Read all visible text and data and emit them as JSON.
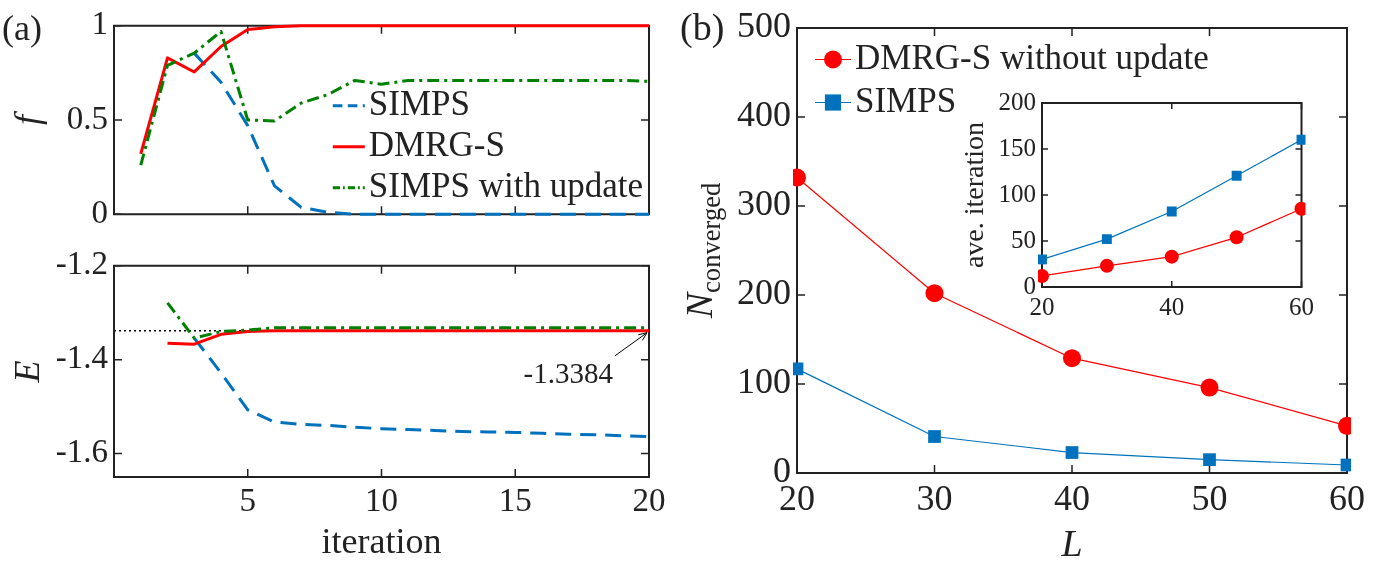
{
  "chart_data": [
    {
      "type": "line",
      "ylabel": "f",
      "x": [
        1,
        2,
        3,
        4,
        5,
        6,
        7,
        8,
        9,
        10,
        11,
        12,
        13,
        14,
        15,
        16,
        17,
        18,
        19,
        20
      ],
      "xlim": [
        0,
        20
      ],
      "xticks": [
        5,
        10,
        15,
        20
      ],
      "ylim": [
        0,
        1
      ],
      "yticks": [
        0,
        0.5,
        1
      ],
      "tick_labels": "y",
      "legend": "bottom right",
      "annotations": [
        "(a)"
      ],
      "series": [
        {
          "name": "SIMPS",
          "color": "#0072bd",
          "line_style": "dashed",
          "marker": "none",
          "values": [
            null,
            null,
            0.855,
            0.7,
            0.47,
            0.15,
            0.036,
            0.01,
            0,
            0,
            0,
            0,
            0,
            0,
            0,
            0,
            0,
            0,
            0,
            0
          ]
        },
        {
          "name": "DMRG-S",
          "color": "#ff0000",
          "line_style": "solid",
          "marker": "none",
          "values": [
            0.32,
            0.83,
            0.755,
            0.89,
            0.98,
            0.995,
            1,
            1,
            1,
            1,
            1,
            1,
            1,
            1,
            1,
            1,
            1,
            1,
            1,
            1
          ]
        },
        {
          "name": "SIMPS with update",
          "color": "#008000",
          "line_style": "dashdot",
          "marker": "none",
          "values": [
            0.26,
            0.79,
            0.855,
            0.97,
            0.5,
            0.495,
            0.59,
            0.635,
            0.71,
            0.69,
            0.71,
            0.71,
            0.71,
            0.71,
            0.71,
            0.71,
            0.71,
            0.71,
            0.71,
            0.705
          ]
        }
      ]
    },
    {
      "type": "line",
      "xlabel": "iteration",
      "ylabel": "E",
      "x": [
        2,
        3,
        4,
        5,
        6,
        7,
        8,
        9,
        10,
        11,
        12,
        13,
        14,
        15,
        16,
        17,
        18,
        19,
        20
      ],
      "xlim": [
        0,
        20
      ],
      "xticks": [
        5,
        10,
        15,
        20
      ],
      "ylim": [
        -1.65,
        -1.2
      ],
      "yticks": [
        -1.6,
        -1.4,
        -1.2
      ],
      "ref_lines": [
        {
          "axis": "y",
          "value": -1.3384,
          "color": "#000000",
          "line_style": "dotted"
        }
      ],
      "annotations": [
        {
          "text": "-1.3384",
          "x": 20,
          "y": -1.3384
        }
      ],
      "series": [
        {
          "color": "#0072bd",
          "line_style": "dashed",
          "marker": "none",
          "values": [
            null,
            -1.354,
            -1.428,
            -1.507,
            -1.533,
            -1.538,
            -1.54,
            -1.544,
            -1.547,
            -1.549,
            -1.551,
            -1.553,
            -1.554,
            -1.555,
            -1.557,
            -1.559,
            -1.56,
            -1.562,
            -1.564
          ]
        },
        {
          "color": "#ff0000",
          "line_style": "solid",
          "marker": "none",
          "values": [
            -1.365,
            -1.367,
            -1.346,
            -1.34,
            -1.3384,
            -1.3384,
            -1.3384,
            -1.3384,
            -1.3384,
            -1.3384,
            -1.3384,
            -1.3384,
            -1.3384,
            -1.3384,
            -1.3384,
            -1.3384,
            -1.3384,
            -1.3384,
            -1.3384
          ]
        },
        {
          "color": "#008000",
          "line_style": "dashdot",
          "marker": "none",
          "values": [
            -1.279,
            -1.354,
            -1.34,
            -1.337,
            -1.332,
            -1.332,
            -1.332,
            -1.332,
            -1.332,
            -1.332,
            -1.332,
            -1.332,
            -1.332,
            -1.332,
            -1.332,
            -1.332,
            -1.332,
            -1.332,
            -1.332
          ]
        }
      ]
    },
    {
      "type": "line",
      "xlabel": "L",
      "ylabel": "N$_{converged}$",
      "x": [
        20,
        30,
        40,
        50,
        60
      ],
      "xlim": [
        20,
        60
      ],
      "xticks": [
        20,
        30,
        40,
        50,
        60
      ],
      "ylim": [
        0,
        500
      ],
      "yticks": [
        0,
        100,
        200,
        300,
        400,
        500
      ],
      "legend": "top left",
      "annotations": [
        "(b)"
      ],
      "series": [
        {
          "name": "DMRG-S without update",
          "color": "#ff0000",
          "line_style": "solid",
          "marker": "circle",
          "values": [
            332,
            202,
            129,
            96,
            53
          ]
        },
        {
          "name": "SIMPS",
          "color": "#0072bd",
          "line_style": "solid",
          "marker": "square",
          "values": [
            117,
            41,
            23,
            15,
            9
          ]
        }
      ]
    },
    {
      "type": "line",
      "ylabel": "ave. iteration",
      "x": [
        20,
        30,
        40,
        50,
        60
      ],
      "xlim": [
        20,
        60
      ],
      "xticks": [
        20,
        40,
        60
      ],
      "ylim": [
        0,
        200
      ],
      "yticks": [
        0,
        50,
        100,
        150,
        200
      ],
      "series": [
        {
          "color": "#ff0000",
          "line_style": "solid",
          "marker": "circle",
          "values": [
            12,
            23,
            33,
            54,
            85
          ]
        },
        {
          "color": "#0072bd",
          "line_style": "solid",
          "marker": "square",
          "values": [
            30,
            52,
            82,
            121,
            160
          ]
        }
      ]
    }
  ]
}
